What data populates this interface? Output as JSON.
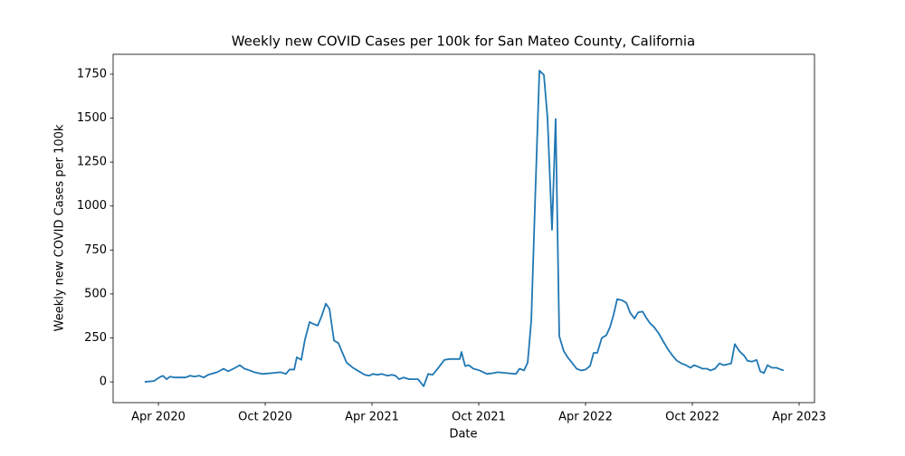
{
  "chart_data": {
    "type": "line",
    "title": "Weekly new COVID Cases per 100k for San Mateo County, California",
    "xlabel": "Date",
    "ylabel": "Weekly new COVID Cases per 100k",
    "color": "#1f77b4",
    "x": [
      2020.186,
      2020.229,
      2020.254,
      2020.271,
      2020.288,
      2020.305,
      2020.326,
      2020.377,
      2020.398,
      2020.419,
      2020.441,
      2020.462,
      2020.483,
      2020.525,
      2020.555,
      2020.576,
      2020.602,
      2020.631,
      2020.653,
      2020.678,
      2020.699,
      2020.737,
      2020.78,
      2020.822,
      2020.847,
      2020.864,
      2020.886,
      2020.898,
      2020.919,
      2020.936,
      2020.958,
      2020.975,
      2020.996,
      2021.013,
      2021.034,
      2021.051,
      2021.072,
      2021.093,
      2021.11,
      2021.131,
      2021.161,
      2021.182,
      2021.216,
      2021.237,
      2021.254,
      2021.275,
      2021.297,
      2021.322,
      2021.343,
      2021.36,
      2021.377,
      2021.398,
      2021.424,
      2021.466,
      2021.492,
      2021.513,
      2021.534,
      2021.564,
      2021.589,
      2021.614,
      2021.64,
      2021.661,
      2021.669,
      2021.686,
      2021.703,
      2021.725,
      2021.754,
      2021.788,
      2021.818,
      2021.839,
      2021.881,
      2021.924,
      2021.941,
      2021.962,
      2021.979,
      2021.996,
      2022.013,
      2022.034,
      2022.055,
      2022.072,
      2022.093,
      2022.11,
      2022.127,
      2022.148,
      2022.169,
      2022.186,
      2022.208,
      2022.229,
      2022.25,
      2022.271,
      2022.288,
      2022.305,
      2022.326,
      2022.347,
      2022.364,
      2022.381,
      2022.398,
      2022.419,
      2022.441,
      2022.458,
      2022.479,
      2022.496,
      2022.517,
      2022.534,
      2022.551,
      2022.572,
      2022.593,
      2022.614,
      2022.636,
      2022.657,
      2022.678,
      2022.699,
      2022.72,
      2022.741,
      2022.758,
      2022.78,
      2022.797,
      2022.818,
      2022.835,
      2022.856,
      2022.877,
      2022.898,
      2022.915,
      2022.932,
      2022.949,
      2022.97,
      2022.992,
      2023.008,
      2023.03,
      2023.051,
      2023.068,
      2023.085,
      2023.102,
      2023.123,
      2023.144,
      2023.165,
      2023.178
    ],
    "values": [
      0,
      5,
      25,
      35,
      15,
      30,
      25,
      25,
      35,
      30,
      35,
      25,
      40,
      55,
      75,
      60,
      75,
      95,
      75,
      65,
      55,
      45,
      50,
      55,
      45,
      70,
      70,
      140,
      125,
      240,
      340,
      330,
      320,
      370,
      445,
      415,
      235,
      220,
      170,
      110,
      80,
      65,
      40,
      35,
      45,
      40,
      45,
      35,
      40,
      35,
      15,
      25,
      15,
      15,
      -25,
      45,
      40,
      85,
      125,
      130,
      130,
      130,
      170,
      90,
      95,
      75,
      65,
      45,
      50,
      55,
      50,
      45,
      75,
      65,
      110,
      350,
      1000,
      1770,
      1745,
      1500,
      865,
      1495,
      260,
      175,
      135,
      110,
      75,
      65,
      70,
      90,
      165,
      165,
      250,
      265,
      310,
      380,
      470,
      465,
      450,
      395,
      360,
      395,
      400,
      365,
      335,
      310,
      275,
      230,
      185,
      150,
      120,
      105,
      95,
      80,
      95,
      85,
      75,
      75,
      65,
      75,
      105,
      95,
      100,
      105,
      215,
      175,
      150,
      120,
      115,
      125,
      60,
      50,
      95,
      80,
      80,
      70,
      65
    ],
    "xlim": [
      2020.038,
      2023.322
    ],
    "xticks": [
      {
        "value": 2020.25,
        "label": "Apr 2020"
      },
      {
        "value": 2020.75,
        "label": "Oct 2020"
      },
      {
        "value": 2021.25,
        "label": "Apr 2021"
      },
      {
        "value": 2021.75,
        "label": "Oct 2021"
      },
      {
        "value": 2022.25,
        "label": "Apr 2022"
      },
      {
        "value": 2022.75,
        "label": "Oct 2022"
      },
      {
        "value": 2023.25,
        "label": "Apr 2023"
      }
    ],
    "ylim": [
      -118,
      1863
    ],
    "yticks": [
      0,
      250,
      500,
      750,
      1000,
      1250,
      1500,
      1750
    ]
  }
}
